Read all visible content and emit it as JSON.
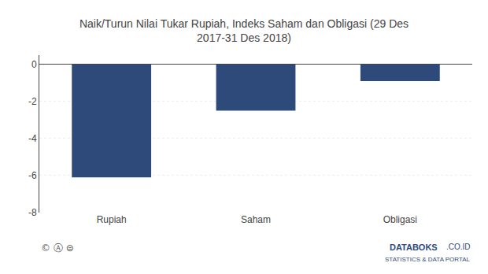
{
  "chart_data": {
    "type": "bar",
    "title": "Naik/Turun Nilai Tukar Rupiah, Indeks Saham dan Obligasi (29 Des\n2017-31 Des 2018)",
    "categories": [
      "Rupiah",
      "Saham",
      "Obligasi"
    ],
    "values": [
      -6.1,
      -2.5,
      -0.9
    ],
    "color": "#2e4a7a",
    "ylim": [
      -8,
      0.5
    ],
    "yticks": [
      0,
      -2,
      -4,
      -6,
      -8
    ],
    "grid": true,
    "annotations": [
      "© Ⓐ ⊜",
      "DATABOKS",
      ".CO.ID",
      "STATISTICS & DATA PORTAL"
    ]
  }
}
